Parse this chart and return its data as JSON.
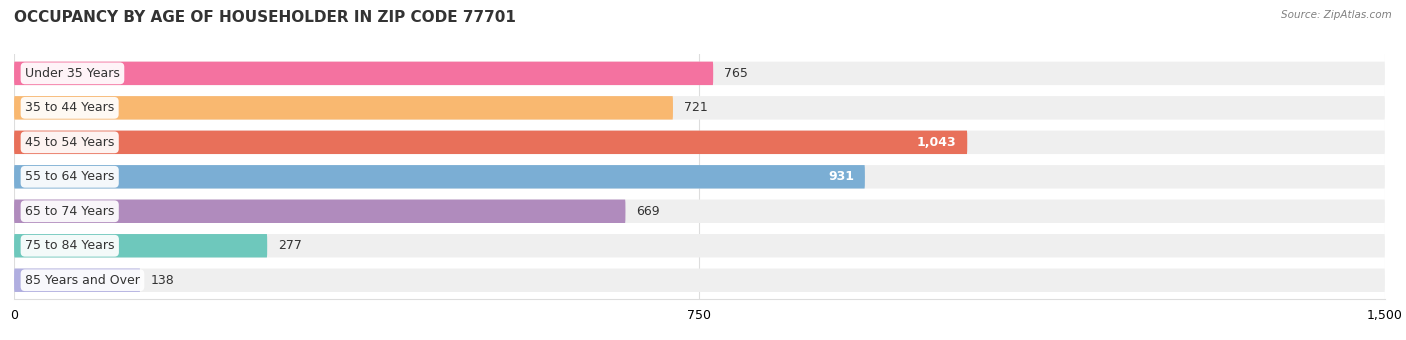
{
  "title": "OCCUPANCY BY AGE OF HOUSEHOLDER IN ZIP CODE 77701",
  "source": "Source: ZipAtlas.com",
  "categories": [
    "Under 35 Years",
    "35 to 44 Years",
    "45 to 54 Years",
    "55 to 64 Years",
    "65 to 74 Years",
    "75 to 84 Years",
    "85 Years and Over"
  ],
  "values": [
    765,
    721,
    1043,
    931,
    669,
    277,
    138
  ],
  "bar_colors": [
    "#F472A0",
    "#F9B870",
    "#E8705A",
    "#7BAED4",
    "#B08BBD",
    "#6EC8BC",
    "#B0AEE0"
  ],
  "bar_bg_color": "#EFEFEF",
  "xlim": [
    0,
    1500
  ],
  "xticks": [
    0,
    750,
    1500
  ],
  "title_fontsize": 11,
  "label_fontsize": 9,
  "value_fontsize": 9,
  "bg_color": "#FFFFFF",
  "grid_color": "#DDDDDD",
  "white_text_threshold": 800
}
